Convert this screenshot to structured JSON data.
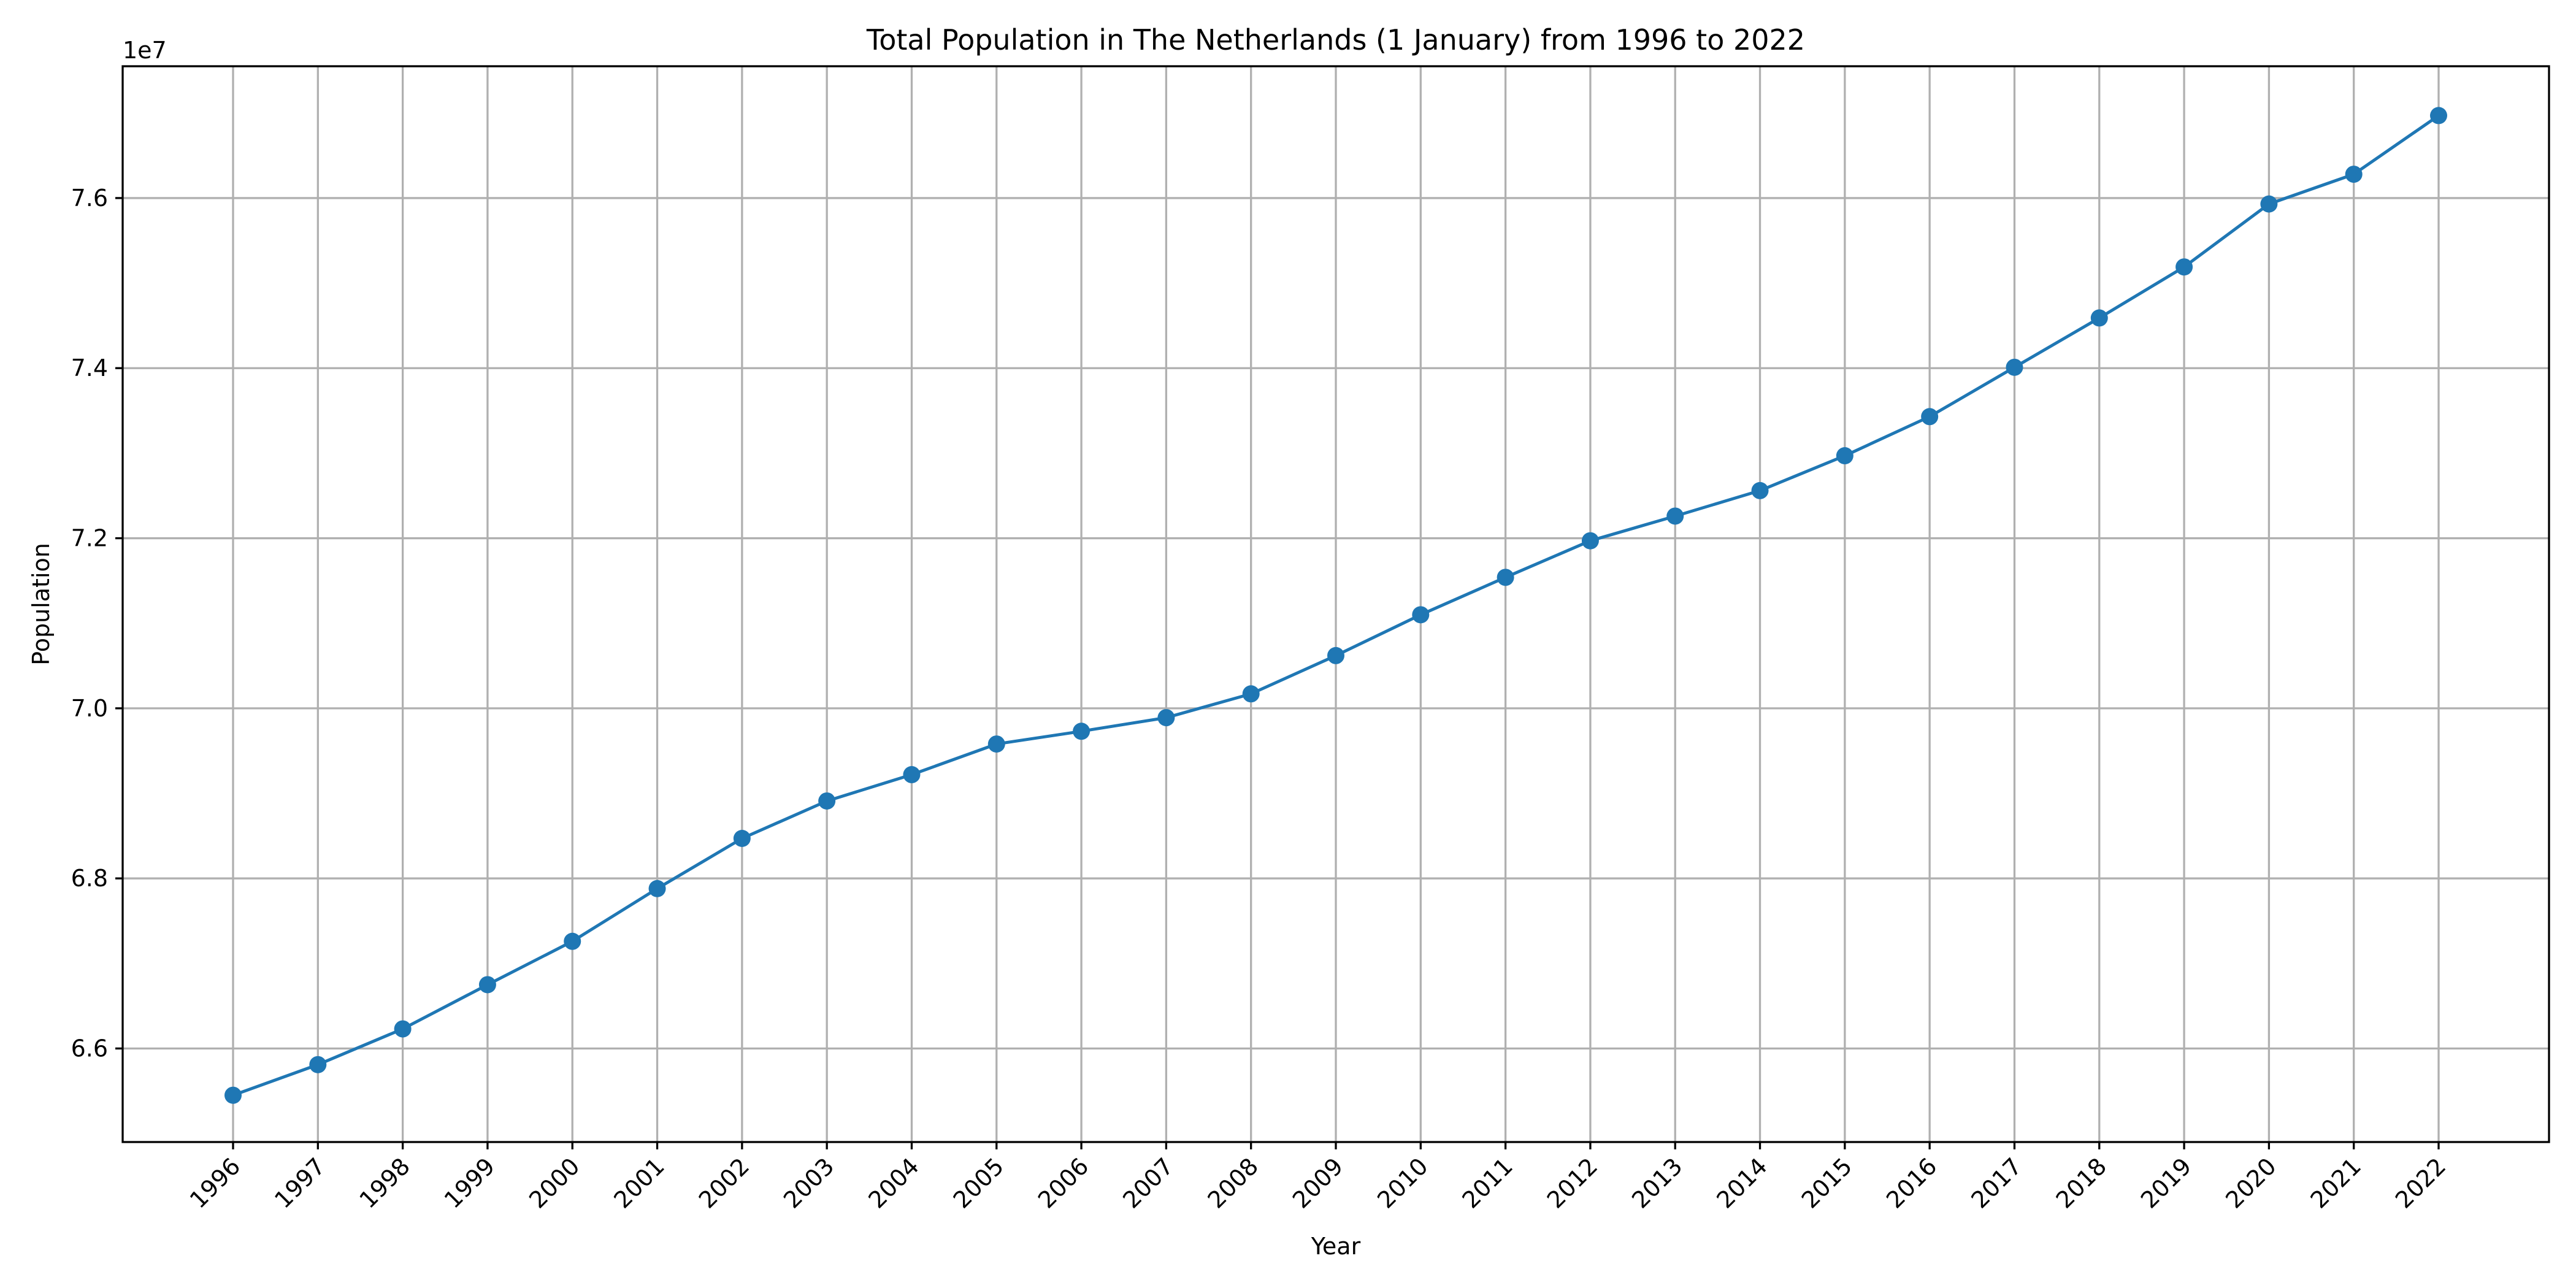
{
  "chart_data": {
    "type": "line",
    "title": "Total Population in The Netherlands (1 January) from 1996 to 2022",
    "xlabel": "Year",
    "ylabel": "Population",
    "y_offset_text": "1e7",
    "x": [
      "1996",
      "1997",
      "1998",
      "1999",
      "2000",
      "2001",
      "2002",
      "2003",
      "2004",
      "2005",
      "2006",
      "2007",
      "2008",
      "2009",
      "2010",
      "2011",
      "2012",
      "2013",
      "2014",
      "2015",
      "2016",
      "2017",
      "2018",
      "2019",
      "2020",
      "2021",
      "2022"
    ],
    "y_ticks": [
      6.6,
      6.8,
      7.0,
      7.2,
      7.4,
      7.6
    ],
    "y_tick_labels": [
      "6.6",
      "6.8",
      "7.0",
      "7.2",
      "7.4",
      "7.6"
    ],
    "ylim": [
      6.49,
      7.755
    ],
    "series": [
      {
        "values": [
          6.545,
          6.581,
          6.623,
          6.675,
          6.726,
          6.788,
          6.847,
          6.891,
          6.922,
          6.958,
          6.973,
          6.989,
          7.017,
          7.062,
          7.11,
          7.154,
          7.197,
          7.226,
          7.256,
          7.297,
          7.343,
          7.401,
          7.459,
          7.519,
          7.593,
          7.628,
          7.697
        ],
        "color": "#1f77b4",
        "marker": "circle"
      }
    ],
    "grid": true,
    "x_tick_rotation": -45
  }
}
